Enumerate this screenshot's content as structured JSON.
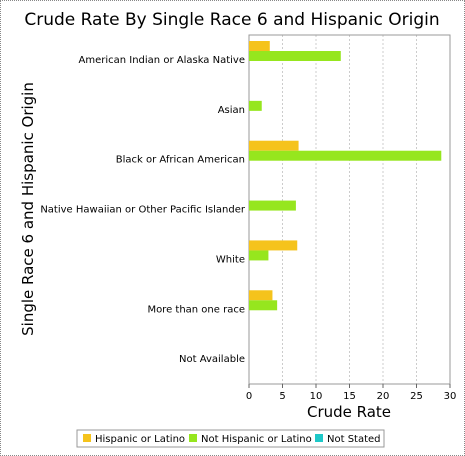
{
  "chart_data": {
    "type": "bar",
    "orientation": "horizontal",
    "title": "Crude Rate By Single Race 6 and Hispanic Origin",
    "xlabel": "Crude Rate",
    "ylabel": "Single Race 6 and Hispanic Origin",
    "xlim": [
      0,
      30
    ],
    "xticks": [
      "0",
      "5",
      "10",
      "15",
      "20",
      "25",
      "30"
    ],
    "grid": "vertical dashed",
    "legend_position": "bottom",
    "categories": [
      "American Indian or Alaska Native",
      "Asian",
      "Black or African American",
      "Native Hawaiian or Other Pacific Islander",
      "White",
      "More than one race",
      "Not Available"
    ],
    "series": [
      {
        "name": "Hispanic or Latino",
        "color": "#f5c31c",
        "values": [
          3.1,
          null,
          7.4,
          null,
          7.2,
          3.5,
          null
        ]
      },
      {
        "name": "Not Hispanic or Latino",
        "color": "#96e61e",
        "values": [
          13.7,
          1.9,
          28.7,
          7.0,
          2.9,
          4.2,
          null
        ]
      },
      {
        "name": "Not Stated",
        "color": "#1ec8c8",
        "values": [
          null,
          null,
          null,
          null,
          null,
          null,
          null
        ]
      }
    ]
  }
}
